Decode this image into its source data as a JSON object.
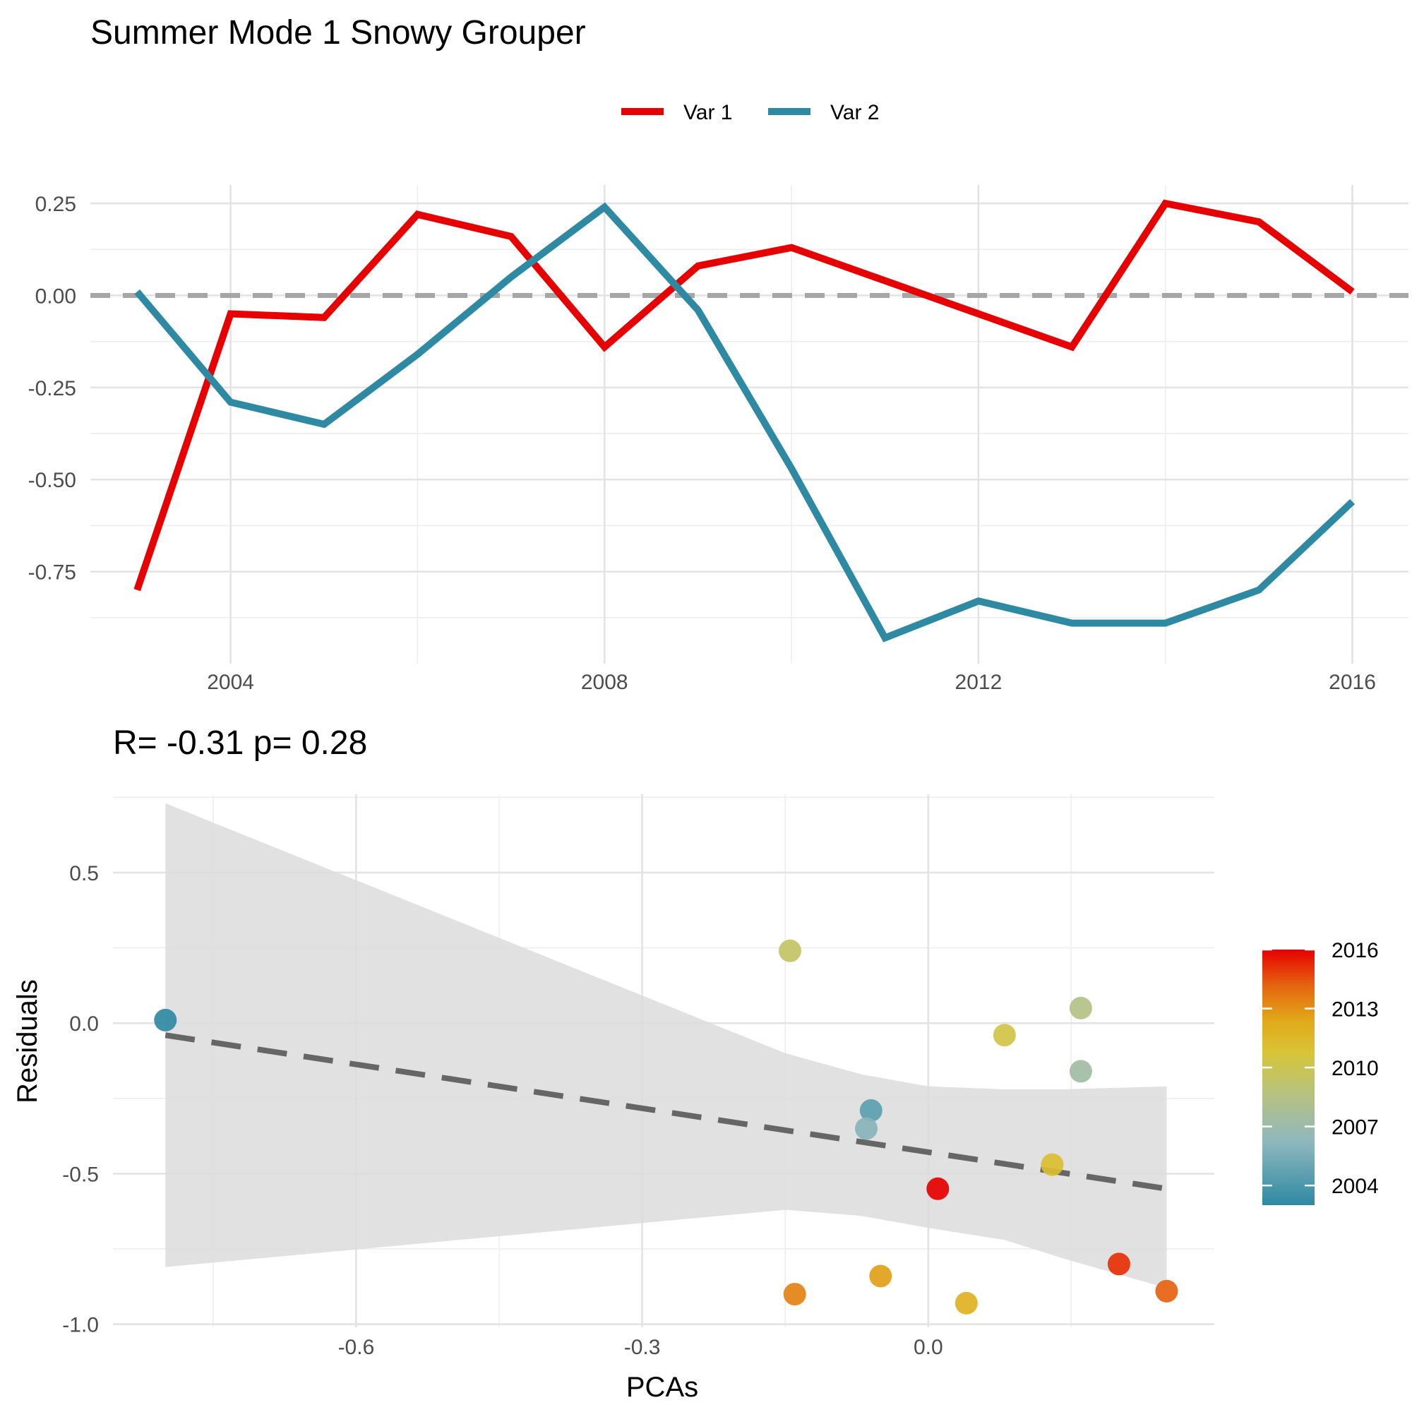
{
  "colors": {
    "var1": "#e60000",
    "var2": "#2e89a3",
    "zero_line": "#a6a6a6",
    "fit_line": "#666666",
    "ribbon": "#dcdcdc"
  },
  "chart_data": [
    {
      "type": "line",
      "title": "Summer Mode 1 Snowy Grouper",
      "corner_label": "",
      "legend": {
        "position": "top",
        "entries": [
          "Var 1",
          "Var 2"
        ]
      },
      "x": [
        2003,
        2004,
        2005,
        2006,
        2007,
        2008,
        2009,
        2010,
        2011,
        2012,
        2013,
        2014,
        2015,
        2016
      ],
      "series": [
        {
          "name": "Var 1",
          "values": [
            -0.8,
            -0.05,
            -0.06,
            0.22,
            0.16,
            -0.14,
            0.08,
            0.13,
            0.04,
            -0.05,
            -0.14,
            0.25,
            0.2,
            0.01
          ]
        },
        {
          "name": "Var 2",
          "values": [
            0.01,
            -0.29,
            -0.35,
            -0.16,
            0.05,
            0.24,
            -0.04,
            -0.47,
            -0.93,
            -0.83,
            -0.89,
            -0.89,
            -0.8,
            -0.56
          ]
        }
      ],
      "xlim": [
        2002.5,
        2016.6
      ],
      "ylim": [
        -1.0,
        0.3
      ],
      "x_ticks": [
        "2004",
        "2008",
        "2012",
        "2016"
      ],
      "y_ticks": [
        "0.25",
        "0.00",
        "-0.25",
        "-0.50",
        "-0.75"
      ],
      "reference_line_y": 0,
      "grid": true
    },
    {
      "type": "scatter",
      "title": "R= -0.31  p= 0.28",
      "xlabel": "PCAs",
      "ylabel": "Residuals",
      "xlim": [
        -0.855,
        0.3
      ],
      "ylim": [
        -1.01,
        0.76
      ],
      "x_ticks": [
        "-0.6",
        "-0.3",
        "0.0"
      ],
      "y_ticks": [
        "0.5",
        "0.0",
        "-0.5",
        "-1.0"
      ],
      "points": [
        {
          "x": -0.8,
          "y": 0.01,
          "year": 2003
        },
        {
          "x": -0.06,
          "y": -0.29,
          "year": 2004
        },
        {
          "x": -0.065,
          "y": -0.35,
          "year": 2005
        },
        {
          "x": 0.16,
          "y": -0.16,
          "year": 2006
        },
        {
          "x": 0.16,
          "y": 0.05,
          "year": 2007
        },
        {
          "x": -0.145,
          "y": 0.24,
          "year": 2008
        },
        {
          "x": 0.08,
          "y": -0.04,
          "year": 2009
        },
        {
          "x": 0.13,
          "y": -0.47,
          "year": 2010
        },
        {
          "x": 0.04,
          "y": -0.93,
          "year": 2011
        },
        {
          "x": -0.05,
          "y": -0.84,
          "year": 2012
        },
        {
          "x": -0.14,
          "y": -0.9,
          "year": 2013
        },
        {
          "x": 0.25,
          "y": -0.89,
          "year": 2014
        },
        {
          "x": 0.2,
          "y": -0.8,
          "year": 2015
        },
        {
          "x": 0.01,
          "y": -0.55,
          "year": 2016
        }
      ],
      "fit_line": {
        "x": [
          -0.8,
          0.25
        ],
        "y": [
          -0.04,
          -0.55
        ]
      },
      "confidence_band": {
        "x": [
          -0.8,
          -0.15,
          -0.07,
          0.0,
          0.08,
          0.14,
          0.25
        ],
        "upper": [
          0.73,
          -0.1,
          -0.17,
          -0.21,
          -0.22,
          -0.22,
          -0.21
        ],
        "lower": [
          -0.81,
          -0.62,
          -0.64,
          -0.68,
          -0.72,
          -0.78,
          -0.88
        ]
      },
      "colorbar": {
        "labels": [
          "2016",
          "2013",
          "2010",
          "2007",
          "2004"
        ],
        "min": 2003,
        "max": 2016,
        "stops": [
          "#2e89a3",
          "#8fb8bd",
          "#b9c37a",
          "#d8c436",
          "#e0a91a",
          "#e56a10",
          "#e60000"
        ]
      }
    }
  ]
}
